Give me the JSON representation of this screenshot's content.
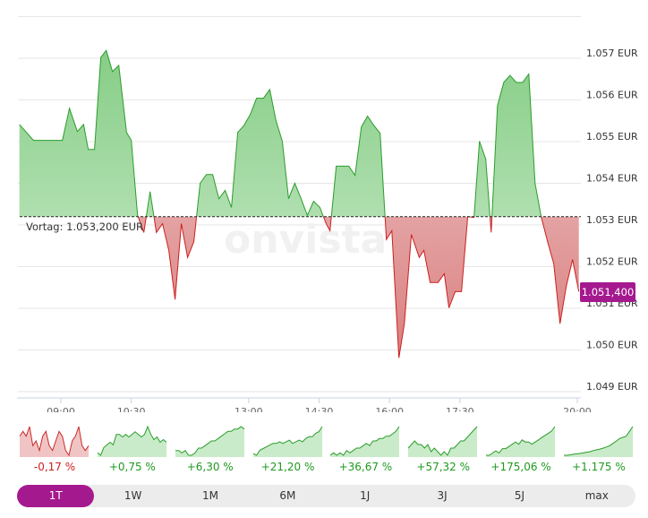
{
  "chart_data": {
    "type": "area",
    "currency": "EUR",
    "y_ticks": [
      "1.057 EUR",
      "1.056 EUR",
      "1.055 EUR",
      "1.054 EUR",
      "1.053 EUR",
      "1.052 EUR",
      "1.051 EUR",
      "1.050 EUR",
      "1.049 EUR"
    ],
    "y_tick_values": [
      1057,
      1056,
      1055,
      1054,
      1053,
      1052,
      1051,
      1050,
      1049
    ],
    "ylim": [
      1048.9,
      1058.3
    ],
    "x_ticks": [
      "09:00",
      "10:30",
      "13:00",
      "14:30",
      "16:00",
      "17:30",
      "20:00"
    ],
    "x_tick_minutes": [
      540,
      630,
      780,
      870,
      960,
      1050,
      1200
    ],
    "xlim_minutes": [
      487,
      1202
    ],
    "baseline": {
      "label": "Vortag: 1.053,200 EUR",
      "value": 1053.2
    },
    "last_price_label": "1.051,400",
    "last_price": 1051.4,
    "watermark": "onvista",
    "colors": {
      "up_line": "#2a9d2a",
      "down_line": "#cc1f1f",
      "up_fill": "#8fd18f",
      "down_fill": "#dd8a8a",
      "accent": "#a5198f"
    },
    "series": [
      [
        487,
        1055.41
      ],
      [
        505,
        1055.03
      ],
      [
        542,
        1055.03
      ],
      [
        551,
        1055.8
      ],
      [
        561,
        1055.24
      ],
      [
        569,
        1055.41
      ],
      [
        575,
        1054.81
      ],
      [
        583,
        1054.81
      ],
      [
        591,
        1057.02
      ],
      [
        598,
        1057.19
      ],
      [
        606,
        1056.68
      ],
      [
        614,
        1056.83
      ],
      [
        624,
        1055.22
      ],
      [
        630,
        1055.03
      ],
      [
        638,
        1053.23
      ],
      [
        646,
        1052.82
      ],
      [
        654,
        1053.8
      ],
      [
        662,
        1052.82
      ],
      [
        670,
        1053.03
      ],
      [
        678,
        1052.39
      ],
      [
        686,
        1051.21
      ],
      [
        694,
        1053.03
      ],
      [
        702,
        1052.22
      ],
      [
        710,
        1052.6
      ],
      [
        718,
        1054.0
      ],
      [
        726,
        1054.21
      ],
      [
        734,
        1054.21
      ],
      [
        742,
        1053.63
      ],
      [
        750,
        1053.83
      ],
      [
        758,
        1053.42
      ],
      [
        766,
        1055.22
      ],
      [
        774,
        1055.39
      ],
      [
        782,
        1055.65
      ],
      [
        790,
        1056.04
      ],
      [
        799,
        1056.04
      ],
      [
        807,
        1056.25
      ],
      [
        815,
        1055.5
      ],
      [
        823,
        1055.01
      ],
      [
        831,
        1053.63
      ],
      [
        839,
        1054.0
      ],
      [
        847,
        1053.63
      ],
      [
        855,
        1053.23
      ],
      [
        863,
        1053.57
      ],
      [
        871,
        1053.42
      ],
      [
        879,
        1053.03
      ],
      [
        884,
        1052.86
      ],
      [
        892,
        1054.41
      ],
      [
        908,
        1054.41
      ],
      [
        916,
        1054.19
      ],
      [
        924,
        1055.35
      ],
      [
        932,
        1055.61
      ],
      [
        940,
        1055.39
      ],
      [
        948,
        1055.2
      ],
      [
        956,
        1052.65
      ],
      [
        963,
        1052.86
      ],
      [
        972,
        1049.81
      ],
      [
        979,
        1050.63
      ],
      [
        988,
        1052.77
      ],
      [
        998,
        1052.22
      ],
      [
        1004,
        1052.39
      ],
      [
        1012,
        1051.62
      ],
      [
        1022,
        1051.62
      ],
      [
        1030,
        1051.83
      ],
      [
        1036,
        1051.01
      ],
      [
        1044,
        1051.4
      ],
      [
        1052,
        1051.4
      ],
      [
        1060,
        1053.2
      ],
      [
        1068,
        1053.18
      ],
      [
        1075,
        1055.01
      ],
      [
        1083,
        1054.58
      ],
      [
        1090,
        1052.82
      ],
      [
        1098,
        1055.86
      ],
      [
        1106,
        1056.42
      ],
      [
        1114,
        1056.59
      ],
      [
        1122,
        1056.42
      ],
      [
        1130,
        1056.42
      ],
      [
        1138,
        1056.62
      ],
      [
        1146,
        1054.0
      ],
      [
        1154,
        1053.18
      ],
      [
        1162,
        1052.6
      ],
      [
        1170,
        1052.07
      ],
      [
        1178,
        1050.63
      ],
      [
        1186,
        1051.53
      ],
      [
        1194,
        1052.17
      ],
      [
        1202,
        1051.4
      ]
    ]
  },
  "mini_charts": [
    {
      "label": "-0,17 %",
      "trend": "down",
      "values": [
        8,
        9,
        8,
        10,
        6,
        7,
        5,
        8,
        9,
        6,
        5,
        7,
        9,
        8,
        5,
        4,
        7,
        8,
        10,
        6,
        5,
        6
      ]
    },
    {
      "label": "+0,75 %",
      "trend": "up",
      "values": [
        2,
        1,
        4,
        5,
        6,
        5,
        9,
        9,
        8,
        9,
        8,
        9,
        10,
        9,
        8,
        9,
        12,
        9,
        7,
        8,
        6,
        7,
        6
      ]
    },
    {
      "label": "+6,30 %",
      "trend": "up",
      "values": [
        4,
        4,
        3,
        4,
        2,
        2,
        3,
        5,
        5,
        6,
        7,
        8,
        8,
        9,
        10,
        11,
        12,
        12,
        13,
        13,
        14,
        13
      ]
    },
    {
      "label": "+21,20 %",
      "trend": "up",
      "values": [
        2,
        1,
        4,
        5,
        6,
        7,
        8,
        8,
        9,
        8,
        9,
        10,
        8,
        9,
        10,
        9,
        11,
        12,
        12,
        14,
        15,
        18
      ]
    },
    {
      "label": "+36,67 %",
      "trend": "up",
      "values": [
        4,
        5,
        4,
        5,
        4,
        6,
        5,
        6,
        7,
        7,
        8,
        9,
        8,
        10,
        10,
        11,
        11,
        12,
        12,
        13,
        14,
        16
      ]
    },
    {
      "label": "+57,32 %",
      "trend": "up",
      "values": [
        7,
        8,
        9,
        8,
        8,
        7,
        8,
        6,
        7,
        6,
        5,
        6,
        5,
        7,
        7,
        8,
        9,
        9,
        10,
        11,
        12,
        13
      ]
    },
    {
      "label": "+175,06 %",
      "trend": "up",
      "values": [
        3,
        3,
        4,
        5,
        4,
        6,
        6,
        7,
        8,
        9,
        8,
        10,
        9,
        9,
        8,
        9,
        10,
        11,
        12,
        13,
        14,
        16
      ]
    },
    {
      "label": "+1.175 %",
      "trend": "up",
      "values": [
        1,
        1,
        1.2,
        1.5,
        1.6,
        1.8,
        2,
        2.3,
        2.5,
        3,
        3.3,
        3.6,
        4,
        4.5,
        5,
        6,
        7,
        8,
        8.5,
        9,
        11,
        13
      ]
    }
  ],
  "ranges": [
    "1T",
    "1W",
    "1M",
    "6M",
    "1J",
    "3J",
    "5J",
    "max"
  ],
  "active_range": "1T"
}
